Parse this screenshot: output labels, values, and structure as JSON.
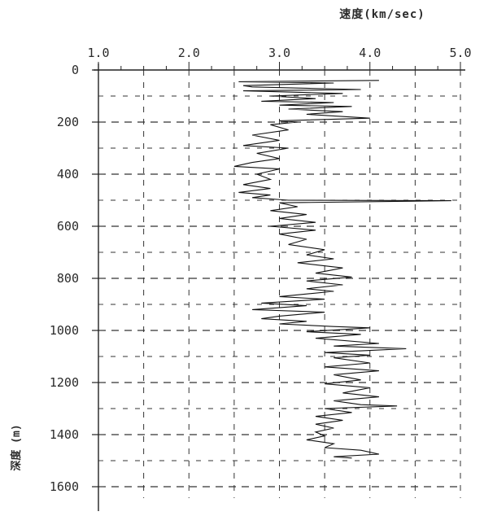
{
  "chart_data": {
    "type": "line",
    "title": "",
    "xlabel": "速度(km/sec)",
    "ylabel": "深度 (m)",
    "x_axis": {
      "position": "top",
      "range": [
        1.0,
        5.0
      ],
      "ticks": [
        1.0,
        2.0,
        3.0,
        4.0,
        5.0
      ],
      "tick_labels": [
        "1.0",
        "2.0",
        "3.0",
        "4.0",
        "5.0"
      ]
    },
    "y_axis": {
      "inverted": true,
      "range": [
        0,
        1600
      ],
      "ticks": [
        0,
        200,
        400,
        600,
        800,
        1000,
        1200,
        1400,
        1600
      ],
      "tick_labels": [
        "0",
        "200",
        "400",
        "600",
        "800",
        "1000",
        "1200",
        "1400",
        "1600"
      ]
    },
    "grid": "dashed",
    "series": [
      {
        "name": "",
        "color": "#111111",
        "points": [
          [
            4.1,
            40
          ],
          [
            2.55,
            45
          ],
          [
            3.6,
            50
          ],
          [
            2.6,
            60
          ],
          [
            2.7,
            65
          ],
          [
            3.9,
            75
          ],
          [
            2.6,
            80
          ],
          [
            3.7,
            90
          ],
          [
            2.9,
            100
          ],
          [
            3.4,
            110
          ],
          [
            2.8,
            120
          ],
          [
            3.6,
            125
          ],
          [
            3.0,
            135
          ],
          [
            3.8,
            140
          ],
          [
            3.1,
            150
          ],
          [
            3.7,
            160
          ],
          [
            3.3,
            170
          ],
          [
            4.0,
            185
          ],
          [
            3.0,
            195
          ],
          [
            3.2,
            200
          ],
          [
            2.9,
            210
          ],
          [
            3.1,
            230
          ],
          [
            2.7,
            250
          ],
          [
            3.0,
            270
          ],
          [
            2.6,
            290
          ],
          [
            3.1,
            300
          ],
          [
            2.75,
            320
          ],
          [
            3.0,
            340
          ],
          [
            2.7,
            355
          ],
          [
            2.5,
            370
          ],
          [
            3.0,
            380
          ],
          [
            2.75,
            400
          ],
          [
            2.9,
            420
          ],
          [
            2.6,
            440
          ],
          [
            2.9,
            455
          ],
          [
            2.55,
            470
          ],
          [
            2.9,
            480
          ],
          [
            2.7,
            490
          ],
          [
            3.1,
            500
          ],
          [
            4.9,
            502
          ],
          [
            3.0,
            510
          ],
          [
            3.2,
            525
          ],
          [
            2.9,
            540
          ],
          [
            3.3,
            555
          ],
          [
            3.0,
            570
          ],
          [
            3.4,
            585
          ],
          [
            2.9,
            600
          ],
          [
            3.4,
            615
          ],
          [
            3.0,
            630
          ],
          [
            3.3,
            650
          ],
          [
            3.1,
            670
          ],
          [
            3.5,
            690
          ],
          [
            3.3,
            710
          ],
          [
            3.6,
            725
          ],
          [
            3.2,
            740
          ],
          [
            3.7,
            760
          ],
          [
            3.4,
            780
          ],
          [
            3.8,
            795
          ],
          [
            3.3,
            810
          ],
          [
            3.7,
            825
          ],
          [
            3.3,
            840
          ],
          [
            3.6,
            850
          ],
          [
            3.0,
            870
          ],
          [
            3.5,
            880
          ],
          [
            2.8,
            895
          ],
          [
            3.3,
            905
          ],
          [
            2.7,
            920
          ],
          [
            3.5,
            930
          ],
          [
            3.0,
            945
          ],
          [
            2.8,
            955
          ],
          [
            3.3,
            965
          ],
          [
            3.0,
            975
          ],
          [
            3.6,
            985
          ],
          [
            4.0,
            990
          ],
          [
            3.3,
            1005
          ],
          [
            3.9,
            1015
          ],
          [
            3.4,
            1030
          ],
          [
            4.1,
            1050
          ],
          [
            3.6,
            1060
          ],
          [
            4.4,
            1070
          ],
          [
            3.5,
            1085
          ],
          [
            4.0,
            1095
          ],
          [
            3.6,
            1105
          ],
          [
            4.0,
            1125
          ],
          [
            3.5,
            1140
          ],
          [
            4.1,
            1155
          ],
          [
            3.6,
            1170
          ],
          [
            3.9,
            1190
          ],
          [
            3.5,
            1205
          ],
          [
            4.0,
            1220
          ],
          [
            3.7,
            1240
          ],
          [
            4.1,
            1255
          ],
          [
            3.6,
            1270
          ],
          [
            3.9,
            1285
          ],
          [
            4.3,
            1290
          ],
          [
            3.5,
            1300
          ],
          [
            3.8,
            1315
          ],
          [
            3.4,
            1330
          ],
          [
            3.7,
            1345
          ],
          [
            3.4,
            1360
          ],
          [
            3.6,
            1375
          ],
          [
            3.4,
            1390
          ],
          [
            3.5,
            1405
          ],
          [
            3.3,
            1420
          ],
          [
            3.6,
            1435
          ],
          [
            3.5,
            1450
          ],
          [
            3.9,
            1460
          ],
          [
            4.1,
            1475
          ],
          [
            3.6,
            1485
          ],
          [
            3.8,
            1490
          ]
        ]
      }
    ]
  }
}
